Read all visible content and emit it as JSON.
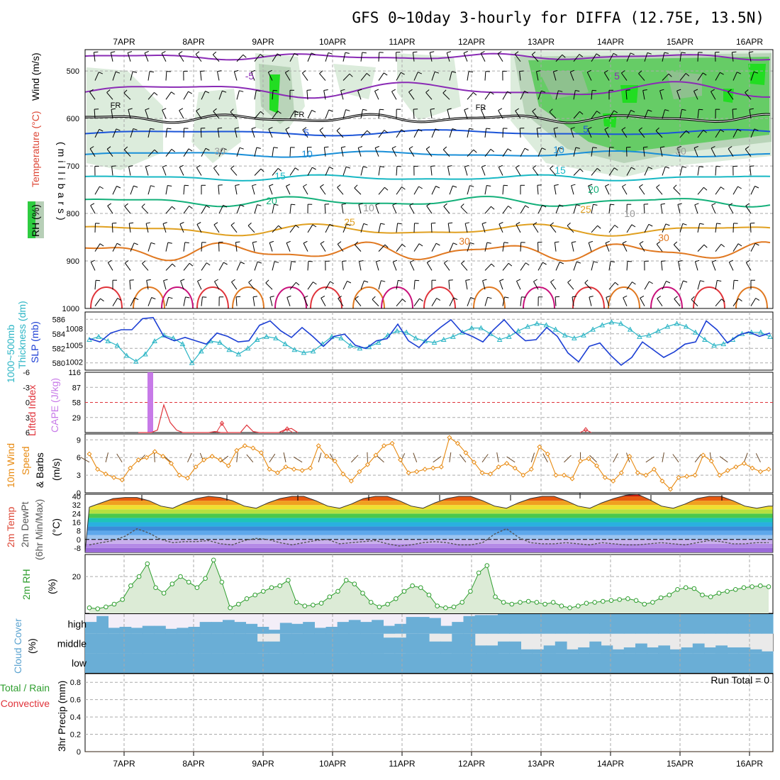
{
  "title": "GFS 0~10day 3-hourly for DIFFA (12.75E, 13.5N)",
  "dates": [
    "7APR",
    "8APR",
    "9APR",
    "10APR",
    "11APR",
    "12APR",
    "13APR",
    "14APR",
    "15APR",
    "16APR"
  ],
  "colors": {
    "temp": "#dd4433",
    "wind": "#000000",
    "rh_fill": "#2e9e2e",
    "thickness": "#2bb5c5",
    "slp": "#1c3fd4",
    "li": "#e0333a",
    "cape": "#c77ae8",
    "wind10": "#e88a10",
    "rh2m": "#2e9e2e",
    "cloud": "#6aaed6",
    "precip_total": "#2e9e2e",
    "precip_conv": "#e0333a"
  },
  "panels": {
    "upper": {
      "ylabel_mb": "(millibars)",
      "left_labels": {
        "wind": "Wind (m/s)",
        "temp": "Temperature (°C)",
        "rh": "RH (%)"
      },
      "pressure_ticks": [
        "500",
        "600",
        "700",
        "800",
        "900",
        "1000"
      ],
      "contour_labels": [
        {
          "text": "-5",
          "color": "#8a2bb5"
        },
        {
          "text": "5",
          "color": "#8a2bb5"
        },
        {
          "text": "FR",
          "color": "#000000"
        },
        {
          "text": "FR",
          "color": "#000000"
        },
        {
          "text": "FR",
          "color": "#000000"
        },
        {
          "text": "5",
          "color": "#1c55d8"
        },
        {
          "text": "5",
          "color": "#1c55d8"
        },
        {
          "text": "10",
          "color": "#1a8fd8"
        },
        {
          "text": "10",
          "color": "#1a8fd8"
        },
        {
          "text": "15",
          "color": "#18b8c4"
        },
        {
          "text": "15",
          "color": "#18b8c4"
        },
        {
          "text": "20",
          "color": "#14b07a"
        },
        {
          "text": "20",
          "color": "#14b07a"
        },
        {
          "text": "25",
          "color": "#e0a020"
        },
        {
          "text": "25",
          "color": "#e0a020"
        },
        {
          "text": "30",
          "color": "#e07820"
        },
        {
          "text": "30",
          "color": "#e07820"
        },
        {
          "text": "30",
          "color": "#999999"
        },
        {
          "text": "30",
          "color": "#999999"
        },
        {
          "text": "10",
          "color": "#999999"
        },
        {
          "text": "10",
          "color": "#999999"
        }
      ]
    },
    "thickness_slp": {
      "left_label_a": "1000~500mb",
      "left_label_b": "Thickness (dm)",
      "left_label_c": "SLP (mb)",
      "ticks_left": [
        "586",
        "584",
        "582",
        "580"
      ],
      "ticks_right": [
        "1008",
        "1005",
        "1002"
      ]
    },
    "li_cape": {
      "left_label_a": "Lifted Index",
      "left_label_b": "CAPE (J/kg)",
      "ticks_li": [
        "-6",
        "-3",
        "0",
        "3",
        "6"
      ],
      "ticks_cape": [
        "116",
        "87",
        "58",
        "29"
      ]
    },
    "wind10": {
      "left_label_a": "10m Wind",
      "left_label_b": "Speed",
      "left_label_c": "& Barbs",
      "unit": "(m/s)",
      "ticks": [
        "9",
        "6",
        "3",
        "0"
      ]
    },
    "temp2m": {
      "left_label_a": "2m Temp",
      "left_label_b": "2m DewPt",
      "left_label_c": "(6hr Min/Max)",
      "unit": "(°C)",
      "ticks": [
        "40",
        "32",
        "24",
        "16",
        "8",
        "0",
        "-8"
      ]
    },
    "rh2m": {
      "left_label": "2m RH",
      "unit": "(%)",
      "ticks": [
        "20"
      ]
    },
    "cloud": {
      "left_label": "Cloud Cover",
      "unit": "(%)",
      "levels": [
        "high",
        "middle",
        "low"
      ]
    },
    "precip": {
      "left_label_a": "Total / Rain",
      "left_label_b": "Convective",
      "ylabel": "3hr Precip (mm)",
      "ticks": [
        "0.8",
        "0.6",
        "0.4",
        "0.2",
        "0"
      ],
      "run_total": "Run Total = 0"
    }
  },
  "chart_data": [
    {
      "type": "line",
      "name": "1000-500mb thickness (dm) & SLP (mb)",
      "x": "3-hourly steps, 6APR 12Z to 16APR 06Z",
      "series": [
        {
          "name": "Thickness (dm)",
          "values": [
            583.2,
            583.6,
            583.0,
            582.4,
            581.0,
            580.2,
            581.2,
            583.0,
            583.8,
            583.4,
            582.6,
            580.0,
            581.6,
            583.0,
            582.8,
            581.8,
            581.2,
            582.0,
            583.2,
            583.6,
            583.4,
            582.6,
            581.8,
            581.4,
            581.6,
            582.6,
            583.6,
            583.4,
            582.4,
            582.0,
            582.2,
            582.8,
            583.8,
            584.4,
            584.2,
            583.4,
            583.0,
            582.8,
            583.2,
            583.6,
            584.2,
            584.8,
            584.8,
            584.0,
            583.2,
            583.6,
            584.4,
            585.0,
            585.4,
            585.2,
            584.6,
            583.8,
            583.4,
            583.8,
            584.6,
            585.2,
            585.6,
            585.4,
            584.6,
            583.6,
            583.8,
            584.4,
            585.0,
            585.4,
            585.0,
            584.2,
            583.2,
            582.4,
            582.6,
            583.2,
            584.0,
            584.2,
            584.2,
            583.6
          ],
          "ylim": [
            579,
            587
          ]
        },
        {
          "name": "SLP (mb)",
          "values": [
            1006.2,
            1005.6,
            1007.2,
            1007.8,
            1007.8,
            1009.8,
            1010.0,
            1006.6,
            1005.8,
            1006.4,
            1005.8,
            1005.2,
            1007.2,
            1006.6,
            1005.6,
            1005.8,
            1008.6,
            1009.4,
            1007.6,
            1006.4,
            1008.2,
            1006.6,
            1004.8,
            1006.6,
            1007.0,
            1005.0,
            1004.4,
            1005.8,
            1006.2,
            1008.8,
            1005.8,
            1004.6,
            1006.6,
            1008.2,
            1009.6,
            1007.4,
            1006.6,
            1005.6,
            1007.8,
            1009.6,
            1007.4,
            1005.8,
            1006.0,
            1008.2,
            1006.6,
            1003.6,
            1002.0,
            1004.8,
            1005.4,
            1003.2,
            1001.4,
            1002.8,
            1005.6,
            1004.2,
            1002.8,
            1003.8,
            1005.2,
            1005.6,
            1009.4,
            1007.8,
            1005.4,
            1006.8,
            1007.4,
            1006.6,
            1007.2
          ],
          "ylim": [
            1000.5,
            1011
          ]
        }
      ]
    },
    {
      "type": "bar",
      "name": "CAPE (J/kg) & Lifted Index",
      "series": [
        {
          "name": "CAPE peak (J/kg)",
          "values": [
            116
          ],
          "at": "7APR 09Z"
        },
        {
          "name": "Lifted Index",
          "values": [
            6,
            6,
            6,
            5.5,
            0.5,
            4,
            5.5,
            6,
            6,
            6,
            6,
            6,
            5.8,
            6,
            6,
            6,
            6,
            4.5,
            5.8,
            6,
            6,
            6,
            6,
            5.4,
            5.2,
            6
          ]
        }
      ],
      "ylim_li": [
        6,
        -6
      ],
      "ylim_cape": [
        0,
        116
      ]
    },
    {
      "type": "line",
      "name": "10m wind speed (m/s)",
      "series": [
        {
          "name": "Speed",
          "values": [
            6.6,
            4.0,
            3.2,
            2.6,
            2.2,
            4.2,
            5.6,
            6.0,
            7.0,
            6.2,
            5.0,
            3.0,
            2.5,
            4.4,
            5.6,
            6.2,
            5.6,
            4.6,
            7.2,
            8.0,
            7.6,
            6.8,
            4.0,
            3.4,
            4.4,
            4.0,
            3.8,
            4.2,
            8.0,
            6.2,
            5.4,
            3.2,
            2.0,
            3.6,
            4.8,
            6.4,
            8.0,
            8.4,
            5.6,
            3.4,
            3.6,
            4.0,
            4.2,
            4.4,
            9.4,
            8.4,
            6.8,
            5.2,
            3.4,
            3.2,
            4.4,
            5.0,
            4.2,
            3.0,
            4.0,
            7.8,
            6.6,
            3.0,
            3.0,
            2.4,
            5.4,
            5.8,
            4.6,
            2.6,
            2.0,
            3.4,
            6.2,
            3.4,
            3.0,
            4.0,
            2.0,
            0.6,
            2.6,
            2.8,
            3.0,
            6.4,
            5.4,
            3.0,
            3.8,
            4.4,
            5.0,
            4.2,
            3.6,
            4.0
          ],
          "ylim": [
            0,
            10
          ]
        }
      ]
    },
    {
      "type": "area",
      "name": "2m temperature & dewpoint (°C)",
      "series": [
        {
          "name": "2m Temp",
          "values": [
            30,
            34,
            38,
            39,
            39,
            36,
            31,
            29,
            34,
            38,
            40,
            39,
            36,
            31,
            29,
            34,
            38,
            40,
            40,
            36,
            31,
            29,
            33,
            38,
            40,
            40,
            36,
            31,
            29,
            34,
            38,
            40,
            40,
            36,
            31,
            29,
            34,
            38,
            40,
            40,
            36,
            31,
            29,
            34,
            38,
            41,
            42,
            37,
            31,
            29,
            33,
            38,
            40,
            40,
            36,
            31,
            29,
            31
          ],
          "ylim": [
            -12,
            42
          ]
        },
        {
          "name": "2m DewPt",
          "values": [
            -5,
            -3,
            -1,
            3,
            10,
            6,
            0,
            -3,
            -2,
            -2,
            -1,
            -4,
            -5,
            -1,
            1,
            0,
            -3,
            -5,
            -3,
            -1,
            0,
            -4,
            -3,
            -2,
            -1,
            -4,
            -6,
            -5,
            -3,
            -2,
            -3,
            -5,
            -5,
            -3,
            5,
            10,
            2,
            -3,
            -4,
            -4,
            -3,
            -4,
            -5,
            -3,
            -4,
            -5,
            -5,
            -4,
            -3,
            -4,
            -5,
            -3,
            -1,
            -2,
            -4,
            -4,
            -3,
            -3
          ],
          "ylim": [
            -12,
            42
          ]
        }
      ]
    },
    {
      "type": "line",
      "name": "2m RH (%)",
      "series": [
        {
          "name": "2m RH",
          "values": [
            3,
            2.5,
            3.5,
            5,
            7.5,
            15,
            20,
            27,
            14,
            11,
            16,
            20,
            17,
            14,
            19,
            29,
            17,
            3,
            5,
            8,
            10,
            12,
            14,
            15,
            18,
            6,
            4,
            4.5,
            5.5,
            9,
            12,
            18,
            16,
            11,
            6,
            3.5,
            5,
            8,
            12,
            15,
            14,
            10,
            4,
            3,
            3.5,
            6,
            12,
            22,
            26,
            9,
            6,
            5,
            6,
            6.5,
            6,
            5,
            6,
            4,
            3,
            4,
            5.5,
            6,
            6.5,
            7,
            7.5,
            8,
            7,
            5,
            6,
            8.5,
            10,
            13,
            14,
            13.5,
            10,
            9,
            11,
            12,
            13,
            14,
            14.5,
            15,
            14.5
          ],
          "ylim": [
            0,
            32
          ]
        }
      ]
    },
    {
      "type": "bar",
      "name": "Cloud cover (%)",
      "series": [
        {
          "name": "High",
          "values": [
            60,
            90,
            30,
            35,
            30,
            40,
            40,
            25,
            30,
            35,
            60,
            60,
            70,
            60,
            50,
            35,
            20,
            55,
            50,
            60,
            30,
            35,
            60,
            70,
            60,
            70,
            40,
            50,
            85,
            85,
            80,
            40,
            60,
            90,
            95,
            95,
            100,
            100,
            100,
            100,
            100,
            100,
            100,
            100,
            100,
            100,
            100,
            100,
            100,
            100,
            100,
            100,
            100,
            100,
            100,
            100,
            100,
            100,
            100,
            100
          ]
        },
        {
          "name": "Middle",
          "values": [
            100,
            100,
            100,
            100,
            100,
            100,
            100,
            100,
            100,
            100,
            100,
            100,
            100,
            100,
            100,
            60,
            60,
            100,
            100,
            100,
            100,
            100,
            100,
            100,
            100,
            100,
            80,
            80,
            100,
            100,
            60,
            60,
            100,
            100,
            40,
            40,
            60,
            60,
            20,
            20,
            40,
            60,
            20,
            30,
            60,
            40,
            20,
            30,
            50,
            30,
            40,
            20,
            30,
            50,
            30,
            40,
            30,
            30,
            20,
            10
          ]
        },
        {
          "name": "Low",
          "values": [
            100,
            100,
            100,
            100,
            100,
            100,
            100,
            100,
            100,
            100,
            100,
            100,
            100,
            100,
            100,
            100,
            100,
            100,
            100,
            100,
            100,
            100,
            100,
            100,
            100,
            100,
            100,
            100,
            100,
            100,
            100,
            100,
            100,
            100,
            100,
            100,
            100,
            100,
            100,
            100,
            100,
            100,
            100,
            100,
            100,
            100,
            100,
            100,
            100,
            100,
            100,
            100,
            100,
            100,
            100,
            100,
            100,
            100,
            100,
            100
          ]
        }
      ]
    },
    {
      "type": "bar",
      "name": "3hr Precip (mm)",
      "series": [
        {
          "name": "Total",
          "values": [
            0
          ]
        },
        {
          "name": "Convective",
          "values": [
            0
          ]
        }
      ],
      "ylim": [
        0,
        0.9
      ]
    }
  ]
}
